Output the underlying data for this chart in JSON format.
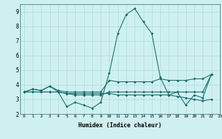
{
  "title": "",
  "xlabel": "Humidex (Indice chaleur)",
  "xlim": [
    -0.5,
    23
  ],
  "ylim": [
    2,
    9.5
  ],
  "yticks": [
    2,
    3,
    4,
    5,
    6,
    7,
    8,
    9
  ],
  "xticks": [
    0,
    1,
    2,
    3,
    4,
    5,
    6,
    7,
    8,
    9,
    10,
    11,
    12,
    13,
    14,
    15,
    16,
    17,
    18,
    19,
    20,
    21,
    22,
    23
  ],
  "bg_color": "#cff0f0",
  "line_color": "#1a6b6b",
  "grid_color": "#aadcdc",
  "series": [
    [
      3.5,
      3.7,
      3.6,
      3.9,
      3.5,
      2.5,
      2.8,
      2.6,
      2.4,
      2.8,
      4.8,
      7.5,
      8.8,
      9.2,
      8.3,
      7.5,
      4.5,
      3.3,
      3.5,
      2.6,
      3.3,
      3.1,
      4.7
    ],
    [
      3.5,
      3.7,
      3.6,
      3.9,
      3.6,
      3.5,
      3.5,
      3.5,
      3.5,
      3.5,
      4.3,
      4.2,
      4.2,
      4.2,
      4.2,
      4.2,
      4.4,
      4.3,
      4.3,
      4.3,
      4.4,
      4.4,
      4.7
    ],
    [
      3.5,
      3.5,
      3.5,
      3.5,
      3.5,
      3.4,
      3.4,
      3.4,
      3.4,
      3.4,
      3.4,
      3.3,
      3.3,
      3.3,
      3.3,
      3.3,
      3.3,
      3.3,
      3.2,
      3.1,
      3.0,
      2.9,
      3.0
    ],
    [
      3.5,
      3.5,
      3.5,
      3.5,
      3.5,
      3.4,
      3.3,
      3.3,
      3.3,
      3.3,
      3.5,
      3.5,
      3.5,
      3.5,
      3.5,
      3.5,
      3.5,
      3.5,
      3.5,
      3.5,
      3.5,
      3.5,
      4.7
    ]
  ]
}
